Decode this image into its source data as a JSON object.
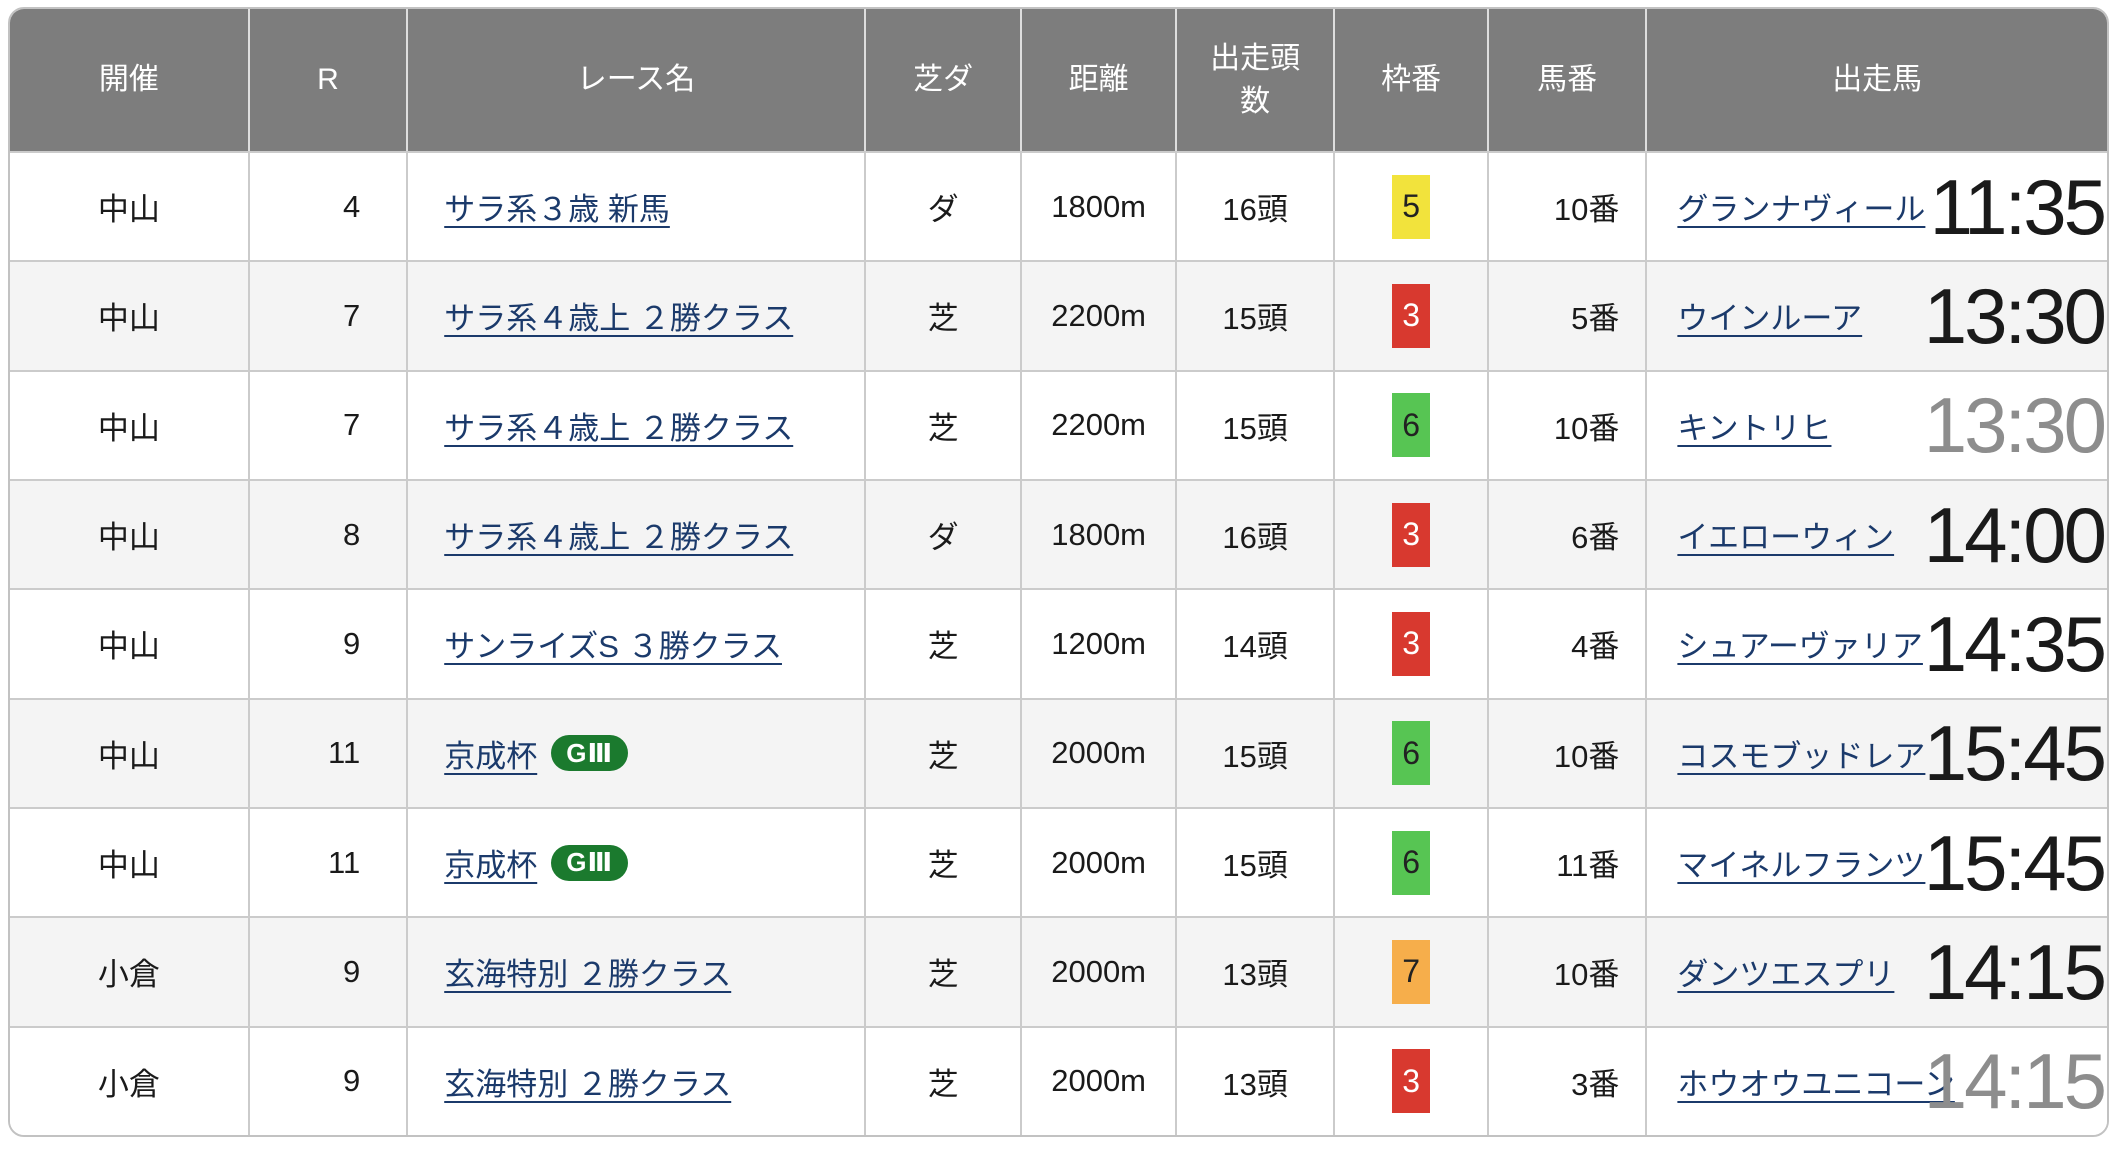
{
  "table": {
    "columns": [
      {
        "key": "venue",
        "label": "開催"
      },
      {
        "key": "race_no",
        "label": "R"
      },
      {
        "key": "race_name",
        "label": "レース名"
      },
      {
        "key": "surface",
        "label": "芝ダ"
      },
      {
        "key": "distance",
        "label": "距離"
      },
      {
        "key": "heads",
        "label": "出走頭数"
      },
      {
        "key": "waku",
        "label": "枠番"
      },
      {
        "key": "horse_no",
        "label": "馬番"
      },
      {
        "key": "horse",
        "label": "出走馬"
      }
    ],
    "rows": [
      {
        "venue": "中山",
        "race_no": "4",
        "race_name": "サラ系３歳 新馬",
        "grade": "",
        "surface": "ダ",
        "distance": "1800m",
        "heads": "16頭",
        "waku": "5",
        "waku_bg": "#f2e33c",
        "waku_fg": "#222222",
        "horse_no": "10番",
        "horse": "グランナヴィール",
        "time": "11:35",
        "time_color": "#1a1a1a"
      },
      {
        "venue": "中山",
        "race_no": "7",
        "race_name": "サラ系４歳上 ２勝クラス",
        "grade": "",
        "surface": "芝",
        "distance": "2200m",
        "heads": "15頭",
        "waku": "3",
        "waku_bg": "#d8392f",
        "waku_fg": "#ffffff",
        "horse_no": "5番",
        "horse": "ウインルーア",
        "time": "13:30",
        "time_color": "#1a1a1a"
      },
      {
        "venue": "中山",
        "race_no": "7",
        "race_name": "サラ系４歳上 ２勝クラス",
        "grade": "",
        "surface": "芝",
        "distance": "2200m",
        "heads": "15頭",
        "waku": "6",
        "waku_bg": "#57c553",
        "waku_fg": "#222222",
        "horse_no": "10番",
        "horse": "キントリヒ",
        "time": "13:30",
        "time_color": "#8d8d8d"
      },
      {
        "venue": "中山",
        "race_no": "8",
        "race_name": "サラ系４歳上 ２勝クラス",
        "grade": "",
        "surface": "ダ",
        "distance": "1800m",
        "heads": "16頭",
        "waku": "3",
        "waku_bg": "#d8392f",
        "waku_fg": "#ffffff",
        "horse_no": "6番",
        "horse": "イエローウィン",
        "time": "14:00",
        "time_color": "#1a1a1a"
      },
      {
        "venue": "中山",
        "race_no": "9",
        "race_name": "サンライズS ３勝クラス",
        "grade": "",
        "surface": "芝",
        "distance": "1200m",
        "heads": "14頭",
        "waku": "3",
        "waku_bg": "#d8392f",
        "waku_fg": "#ffffff",
        "horse_no": "4番",
        "horse": "シュアーヴァリア",
        "time": "14:35",
        "time_color": "#1a1a1a"
      },
      {
        "venue": "中山",
        "race_no": "11",
        "race_name": "京成杯",
        "grade": "GⅢ",
        "surface": "芝",
        "distance": "2000m",
        "heads": "15頭",
        "waku": "6",
        "waku_bg": "#57c553",
        "waku_fg": "#222222",
        "horse_no": "10番",
        "horse": "コスモブッドレア",
        "time": "15:45",
        "time_color": "#1a1a1a"
      },
      {
        "venue": "中山",
        "race_no": "11",
        "race_name": "京成杯",
        "grade": "GⅢ",
        "surface": "芝",
        "distance": "2000m",
        "heads": "15頭",
        "waku": "6",
        "waku_bg": "#57c553",
        "waku_fg": "#222222",
        "horse_no": "11番",
        "horse": "マイネルフランツ",
        "time": "15:45",
        "time_color": "#1a1a1a"
      },
      {
        "venue": "小倉",
        "race_no": "9",
        "race_name": "玄海特別 ２勝クラス",
        "grade": "",
        "surface": "芝",
        "distance": "2000m",
        "heads": "13頭",
        "waku": "7",
        "waku_bg": "#f6ae4b",
        "waku_fg": "#222222",
        "horse_no": "10番",
        "horse": "ダンツエスプリ",
        "time": "14:15",
        "time_color": "#1a1a1a"
      },
      {
        "venue": "小倉",
        "race_no": "9",
        "race_name": "玄海特別 ２勝クラス",
        "grade": "",
        "surface": "芝",
        "distance": "2000m",
        "heads": "13頭",
        "waku": "3",
        "waku_bg": "#d8392f",
        "waku_fg": "#ffffff",
        "horse_no": "3番",
        "horse": "ホウオウユニコーン",
        "time": "14:15",
        "time_color": "#8d8d8d"
      }
    ]
  },
  "colors": {
    "header_bg": "#7d7d7d",
    "row_alt_bg": "#f4f4f4",
    "border": "#cbcbcb",
    "link": "#1b3a6b",
    "time": "#1a1a1a",
    "time_muted": "#8d8d8d",
    "grade_bg": "#1b7a2e"
  }
}
